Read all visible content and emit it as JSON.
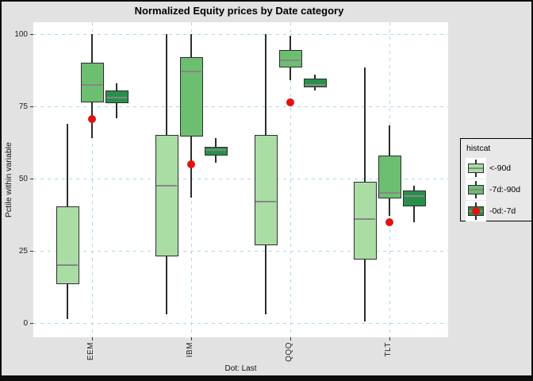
{
  "title": "Normalized Equity prices by Date category",
  "y_axis": {
    "title": "Pctile within variable",
    "ticks": [
      "100",
      "75",
      "50",
      "25",
      "0"
    ],
    "tick_values": [
      100,
      75,
      50,
      25,
      0
    ]
  },
  "x_axis": {
    "categories": [
      "EEM",
      "IBM",
      "QQQ",
      "TLT"
    ],
    "caption": "Dot: Last"
  },
  "legend": {
    "title": "histcat",
    "entries": [
      {
        "label": "<-90d",
        "fill": "#aadda4",
        "dot": false
      },
      {
        "label": "-7d:-90d",
        "fill": "#6cbe71",
        "dot": false
      },
      {
        "label": "-0d:-7d",
        "fill": "#28904c",
        "dot": true
      }
    ]
  },
  "colors": {
    "figure_bg": "#e2e2e2",
    "panel_bg": "#ffffff",
    "gridline": "#aad9e9",
    "box_border": "#2d2d2d",
    "median_line": "#878787",
    "dot_red": "#e31212",
    "series_light": "#aadda4",
    "series_medium": "#6cbe71",
    "series_dark": "#28904c"
  },
  "chart_data": {
    "type": "boxplot",
    "title": "Normalized Equity prices by Date category",
    "xlabel": "Dot: Last",
    "ylabel": "Pctile within variable",
    "ylim": [
      0,
      100
    ],
    "y_gridlines": [
      0,
      25,
      50,
      75,
      100
    ],
    "grid_style": "dashed",
    "legend_position": "right",
    "categories": [
      "EEM",
      "IBM",
      "QQQ",
      "TLT"
    ],
    "series": [
      {
        "name": "<-90d",
        "fill": "#aadda4",
        "boxes": [
          {
            "category": "EEM",
            "whisker_low": 1.5,
            "q1": 13.5,
            "median": 20,
            "q3": 40.5,
            "whisker_high": 69
          },
          {
            "category": "IBM",
            "whisker_low": 3,
            "q1": 23,
            "median": 47.5,
            "q3": 65,
            "whisker_high": 100
          },
          {
            "category": "QQQ",
            "whisker_low": 3,
            "q1": 27,
            "median": 42,
            "q3": 65,
            "whisker_high": 100
          },
          {
            "category": "TLT",
            "whisker_low": 0.5,
            "q1": 22,
            "median": 36,
            "q3": 49,
            "whisker_high": 88.5
          }
        ]
      },
      {
        "name": "-7d:-90d",
        "fill": "#6cbe71",
        "boxes": [
          {
            "category": "EEM",
            "whisker_low": 64,
            "q1": 76.5,
            "median": 82.5,
            "q3": 90,
            "whisker_high": 100
          },
          {
            "category": "IBM",
            "whisker_low": 43.5,
            "q1": 64.5,
            "median": 87,
            "q3": 92,
            "whisker_high": 100
          },
          {
            "category": "QQQ",
            "whisker_low": 84,
            "q1": 88.5,
            "median": 91,
            "q3": 94.5,
            "whisker_high": 99.5
          },
          {
            "category": "TLT",
            "whisker_low": 37,
            "q1": 43,
            "median": 45,
            "q3": 58,
            "whisker_high": 68.5
          }
        ]
      },
      {
        "name": "-0d:-7d",
        "fill": "#28904c",
        "boxes": [
          {
            "category": "EEM",
            "whisker_low": 71,
            "q1": 76,
            "median": 78,
            "q3": 80.5,
            "whisker_high": 83
          },
          {
            "category": "IBM",
            "whisker_low": 55.5,
            "q1": 58,
            "median": 60,
            "q3": 61,
            "whisker_high": 64
          },
          {
            "category": "QQQ",
            "whisker_low": 80.5,
            "q1": 81.5,
            "median": 82.5,
            "q3": 84.5,
            "whisker_high": 86
          },
          {
            "category": "TLT",
            "whisker_low": 35,
            "q1": 40.5,
            "median": 44,
            "q3": 46,
            "whisker_high": 47.5
          }
        ]
      }
    ],
    "points": {
      "name": "Last (-0d:-7d dot)",
      "color": "#e31212",
      "values": [
        {
          "category": "EEM",
          "value": 70.5
        },
        {
          "category": "IBM",
          "value": 55
        },
        {
          "category": "QQQ",
          "value": 76.5
        },
        {
          "category": "TLT",
          "value": 35
        }
      ]
    }
  }
}
